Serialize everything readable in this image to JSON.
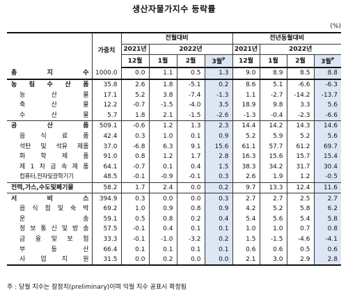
{
  "title": "생산자물가지수 등락률",
  "unit": "(%)",
  "header": {
    "weight": "가중치",
    "mom": "전월대비",
    "yoy": "전년동월대비",
    "y2021": "2021년",
    "y2022": "2022년",
    "months": [
      "12월",
      "1월",
      "2월",
      "3월"
    ],
    "p_mark": "P"
  },
  "rows": [
    {
      "label": "총 지 수",
      "type": "major",
      "group": "total",
      "w": "1000.0",
      "mom": [
        "0.0",
        "1.1",
        "0.5",
        "1.3"
      ],
      "yoy": [
        "9.0",
        "8.9",
        "8.5",
        "8.8"
      ]
    },
    {
      "label": "농 림 수 산 품",
      "type": "major",
      "group": "start",
      "w": "35.8",
      "mom": [
        "2.6",
        "1.8",
        "-5.1",
        "0.2"
      ],
      "yoy": [
        "8.6",
        "5.1",
        "-6.6",
        "-6.3"
      ]
    },
    {
      "label": "농 산 물",
      "type": "sub",
      "w": "17.1",
      "mom": [
        "5.2",
        "3.8",
        "-7.4",
        "-1.3"
      ],
      "yoy": [
        "1.1",
        "-2.7",
        "-14.2",
        "-13.7"
      ]
    },
    {
      "label": "축 산 물",
      "type": "sub",
      "w": "12.2",
      "mom": [
        "-0.7",
        "-1.5",
        "-4.0",
        "3.5"
      ],
      "yoy": [
        "18.9",
        "9.8",
        "3.3",
        "5.6"
      ]
    },
    {
      "label": "수 산 물",
      "type": "sub",
      "w": "5.7",
      "mom": [
        "1.8",
        "2.1",
        "-1.5",
        "-2.6"
      ],
      "yoy": [
        "-1.3",
        "-0.4",
        "-2.3",
        "-6.6"
      ]
    },
    {
      "label": "공 산 품",
      "type": "major",
      "group": "start",
      "w": "509.1",
      "mom": [
        "-0.6",
        "1.2",
        "1.3",
        "2.3"
      ],
      "yoy": [
        "14.4",
        "14.2",
        "14.3",
        "14.6"
      ]
    },
    {
      "label": "음 식 료 품",
      "type": "sub",
      "w": "42.4",
      "mom": [
        "0.3",
        "1.0",
        "0.1",
        "0.9"
      ],
      "yoy": [
        "5.2",
        "5.9",
        "5.2",
        "5.6"
      ]
    },
    {
      "label": "석탄 및 석유 제품",
      "type": "sub",
      "w": "37.0",
      "mom": [
        "-6.8",
        "6.3",
        "9.1",
        "15.6"
      ],
      "yoy": [
        "61.1",
        "57.7",
        "61.2",
        "69.7"
      ]
    },
    {
      "label": "화 학 제 품",
      "type": "sub",
      "w": "91.0",
      "mom": [
        "0.8",
        "1.2",
        "1.7",
        "2.8"
      ],
      "yoy": [
        "16.3",
        "15.6",
        "15.7",
        "15.4"
      ]
    },
    {
      "label": "제 1 차 금 속 제 품",
      "type": "sub",
      "w": "64.1",
      "mom": [
        "-0.7",
        "0.1",
        "0.4",
        "1.5"
      ],
      "yoy": [
        "38.3",
        "34.2",
        "31.7",
        "30.4"
      ]
    },
    {
      "label": "컴퓨터,전자및광학기기",
      "type": "small",
      "w": "48.5",
      "mom": [
        "-0.1",
        "-0.9",
        "-0.1",
        "0.3"
      ],
      "yoy": [
        "2.6",
        "1.9",
        "1.2",
        "-0.5"
      ]
    },
    {
      "label": "전력,가스,수도및폐기물",
      "type": "major",
      "group": "single",
      "w": "58.2",
      "mom": [
        "1.7",
        "2.4",
        "0.0",
        "0.2"
      ],
      "yoy": [
        "9.7",
        "13.3",
        "12.4",
        "11.6"
      ]
    },
    {
      "label": "서 비 스",
      "type": "major",
      "group": "start",
      "w": "394.9",
      "mom": [
        "0.3",
        "0.0",
        "0.0",
        "0.3"
      ],
      "yoy": [
        "2.7",
        "2.7",
        "2.5",
        "2.7"
      ]
    },
    {
      "label": "음 식 점 및 숙 박",
      "type": "sub",
      "w": "69.2",
      "mom": [
        "1.0",
        "0.9",
        "0.8",
        "0.9"
      ],
      "yoy": [
        "4.2",
        "5.2",
        "5.8",
        "6.2"
      ]
    },
    {
      "label": "운 송",
      "type": "sub",
      "w": "59.1",
      "mom": [
        "0.5",
        "0.8",
        "0.2",
        "0.4"
      ],
      "yoy": [
        "5.4",
        "5.6",
        "5.4",
        "5.8"
      ]
    },
    {
      "label": "정 보 통 신 및 방 송",
      "type": "sub",
      "w": "57.5",
      "mom": [
        "-0.1",
        "0.4",
        "0.1",
        "0.1"
      ],
      "yoy": [
        "1.0",
        "1.0",
        "0.7",
        "0.8"
      ]
    },
    {
      "label": "금 융 및 보 험",
      "type": "sub",
      "w": "33.3",
      "mom": [
        "-0.1",
        "-1.0",
        "-3.2",
        "0.2"
      ],
      "yoy": [
        "1.5",
        "-1.5",
        "-4.6",
        "-4.1"
      ]
    },
    {
      "label": "부 동 산",
      "type": "sub",
      "w": "66.4",
      "mom": [
        "0.1",
        "0.1",
        "0.1",
        "0.1"
      ],
      "yoy": [
        "0.6",
        "0.6",
        "0.5",
        "0.6"
      ]
    },
    {
      "label": "사 업 지 원",
      "type": "sub",
      "w": "31.5",
      "mom": [
        "0.0",
        "0.2",
        "0.0",
        "0.0"
      ],
      "yoy": [
        "2.1",
        "3.0",
        "2.9",
        "2.8"
      ]
    }
  ],
  "footnote": "주 : 당월 지수는 잠정치(preliminary)이며 익월 지수 공표시 확정됨"
}
